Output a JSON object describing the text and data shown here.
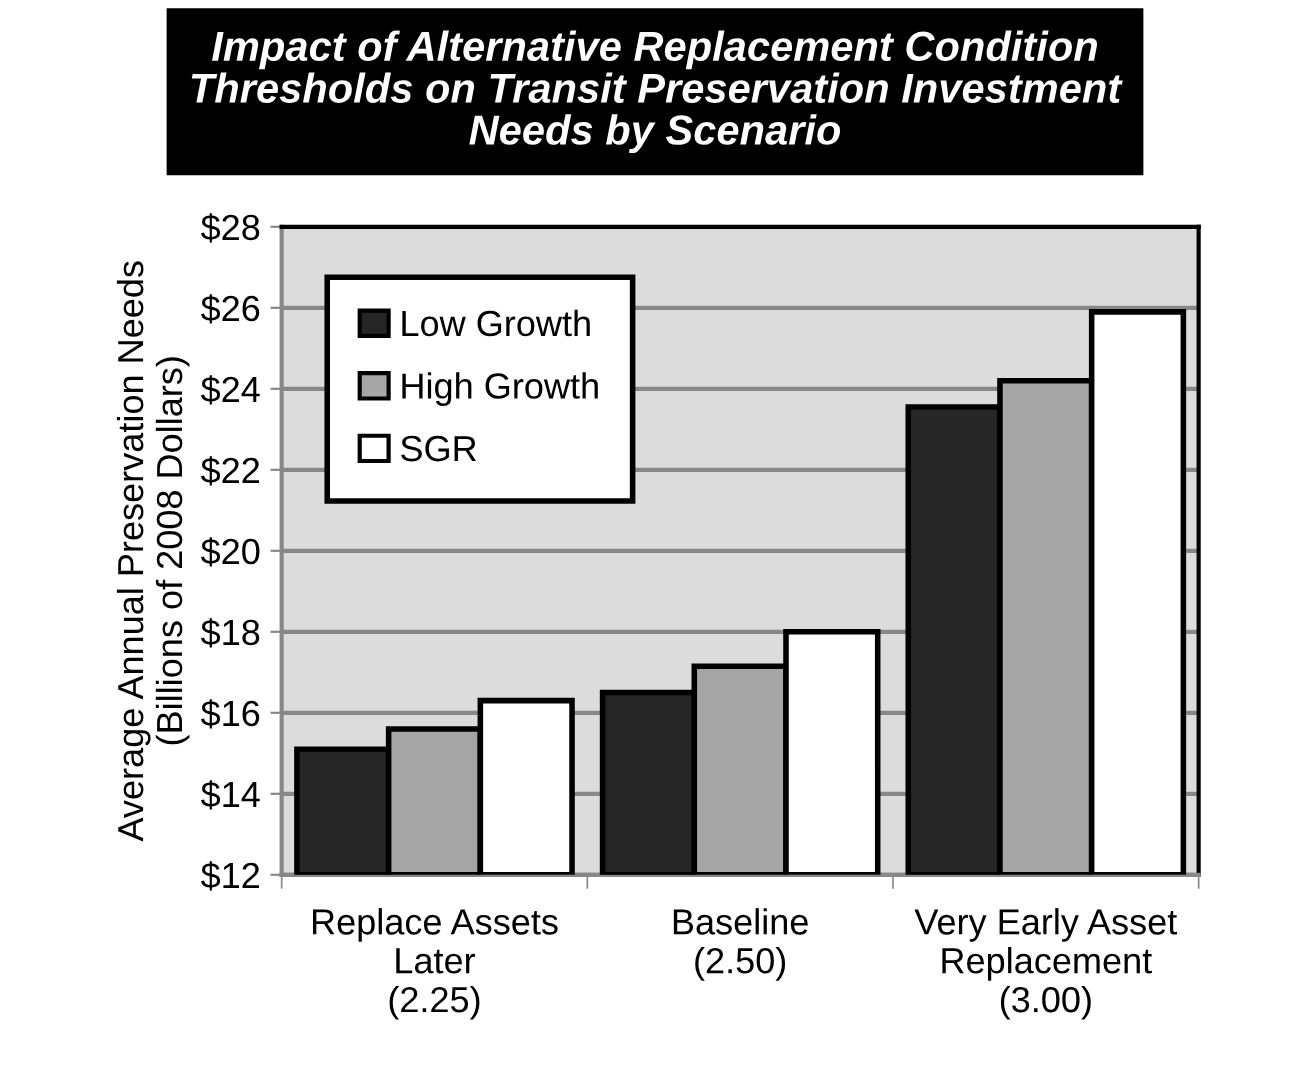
{
  "chart_data": {
    "type": "bar",
    "title": "Impact of Alternative Replacement Condition\nThresholds on Transit Preservation Investment\nNeeds by Scenario",
    "ylabel": "Average Annual Preservation Needs\n(Billions of 2008 Dollars)",
    "categories": [
      "Replace Assets\nLater\n(2.25)",
      "Baseline\n(2.50)",
      "Very Early Asset\nReplacement\n(3.00)"
    ],
    "series": [
      {
        "name": "Low Growth",
        "color": "#262626",
        "values": [
          15.1,
          16.5,
          23.55
        ]
      },
      {
        "name": "High Growth",
        "color": "#a6a6a6",
        "values": [
          15.6,
          17.15,
          24.2
        ]
      },
      {
        "name": "SGR",
        "color": "#ffffff",
        "values": [
          16.3,
          18.0,
          25.9
        ]
      }
    ],
    "ylim": [
      12,
      28
    ],
    "yticks": [
      {
        "value": 12,
        "label": "$12"
      },
      {
        "value": 14,
        "label": "$14"
      },
      {
        "value": 16,
        "label": "$16"
      },
      {
        "value": 18,
        "label": "$18"
      },
      {
        "value": 20,
        "label": "$20"
      },
      {
        "value": 22,
        "label": "$22"
      },
      {
        "value": 24,
        "label": "$24"
      },
      {
        "value": 26,
        "label": "$26"
      },
      {
        "value": 28,
        "label": "$28"
      }
    ],
    "grid": "y",
    "legend": "top left"
  }
}
